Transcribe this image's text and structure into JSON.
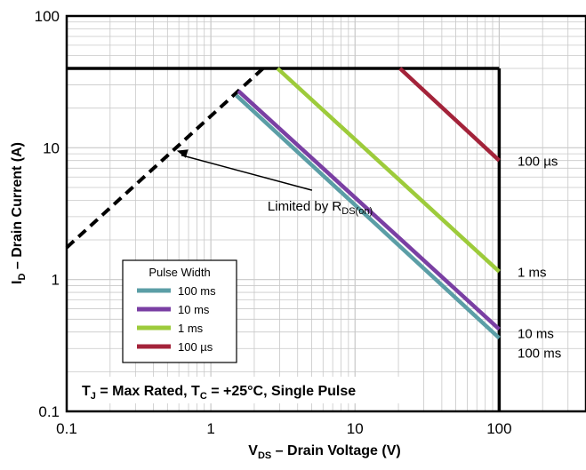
{
  "chart_data": {
    "type": "line",
    "title": "",
    "xlabel": {
      "main": "V",
      "sub": "DS",
      "rest": " – Drain Voltage (V)"
    },
    "ylabel": {
      "main": "I",
      "sub": "D",
      "rest": " – Drain Current (A)"
    },
    "x_scale": "log",
    "y_scale": "log",
    "xlim": [
      0.1,
      400
    ],
    "ylim": [
      0.1,
      100
    ],
    "x_ticks": [
      {
        "value": 0.1,
        "label": "0.1"
      },
      {
        "value": 1,
        "label": "1"
      },
      {
        "value": 10,
        "label": "10"
      },
      {
        "value": 100,
        "label": "100"
      }
    ],
    "y_ticks": [
      {
        "value": 0.1,
        "label": "0.1"
      },
      {
        "value": 1,
        "label": "1"
      },
      {
        "value": 10,
        "label": "10"
      },
      {
        "value": 100,
        "label": "100"
      }
    ],
    "grid": true,
    "legend": {
      "title": "Pulse Width",
      "placement": "bottom-left",
      "entries": [
        {
          "label": "100 ms",
          "color": "#5b9ea6"
        },
        {
          "label": "10 ms",
          "color": "#7a3fa3"
        },
        {
          "label": "1 ms",
          "color": "#9dcb3b"
        },
        {
          "label": "100 µs",
          "color": "#a3233a"
        }
      ]
    },
    "series": [
      {
        "name": "100 ms",
        "color": "#5b9ea6",
        "x": [
          1.5,
          100
        ],
        "y": [
          25,
          0.36
        ],
        "end_label": "100 ms"
      },
      {
        "name": "10 ms",
        "color": "#7a3fa3",
        "x": [
          1.55,
          100
        ],
        "y": [
          27,
          0.42
        ],
        "end_label": "10 ms"
      },
      {
        "name": "1 ms",
        "color": "#9dcb3b",
        "x": [
          2.9,
          100
        ],
        "y": [
          40,
          1.15
        ],
        "end_label": "1 ms"
      },
      {
        "name": "100 µs",
        "color": "#a3233a",
        "x": [
          20.5,
          100
        ],
        "y": [
          40,
          8
        ],
        "end_label": "100 µs"
      }
    ],
    "rds_limit_line": {
      "x": [
        0.1,
        2.3
      ],
      "y": [
        1.75,
        40
      ],
      "style": "dashed",
      "color": "#000000"
    },
    "current_limit": 40,
    "voltage_limit": 100,
    "annotations": {
      "rds": {
        "main": "Limited by R",
        "sub": "DS(on)",
        "x": 5.8,
        "y": 3.6,
        "arrow_to": [
          0.58,
          9.5
        ]
      },
      "conditions": {
        "parts": [
          {
            "t": "T",
            "s": false
          },
          {
            "t": "J",
            "s": true
          },
          {
            "t": " = Max Rated, T",
            "s": false
          },
          {
            "t": "C",
            "s": true
          },
          {
            "t": " = +25°C, Single Pulse",
            "s": false
          }
        ]
      }
    }
  }
}
